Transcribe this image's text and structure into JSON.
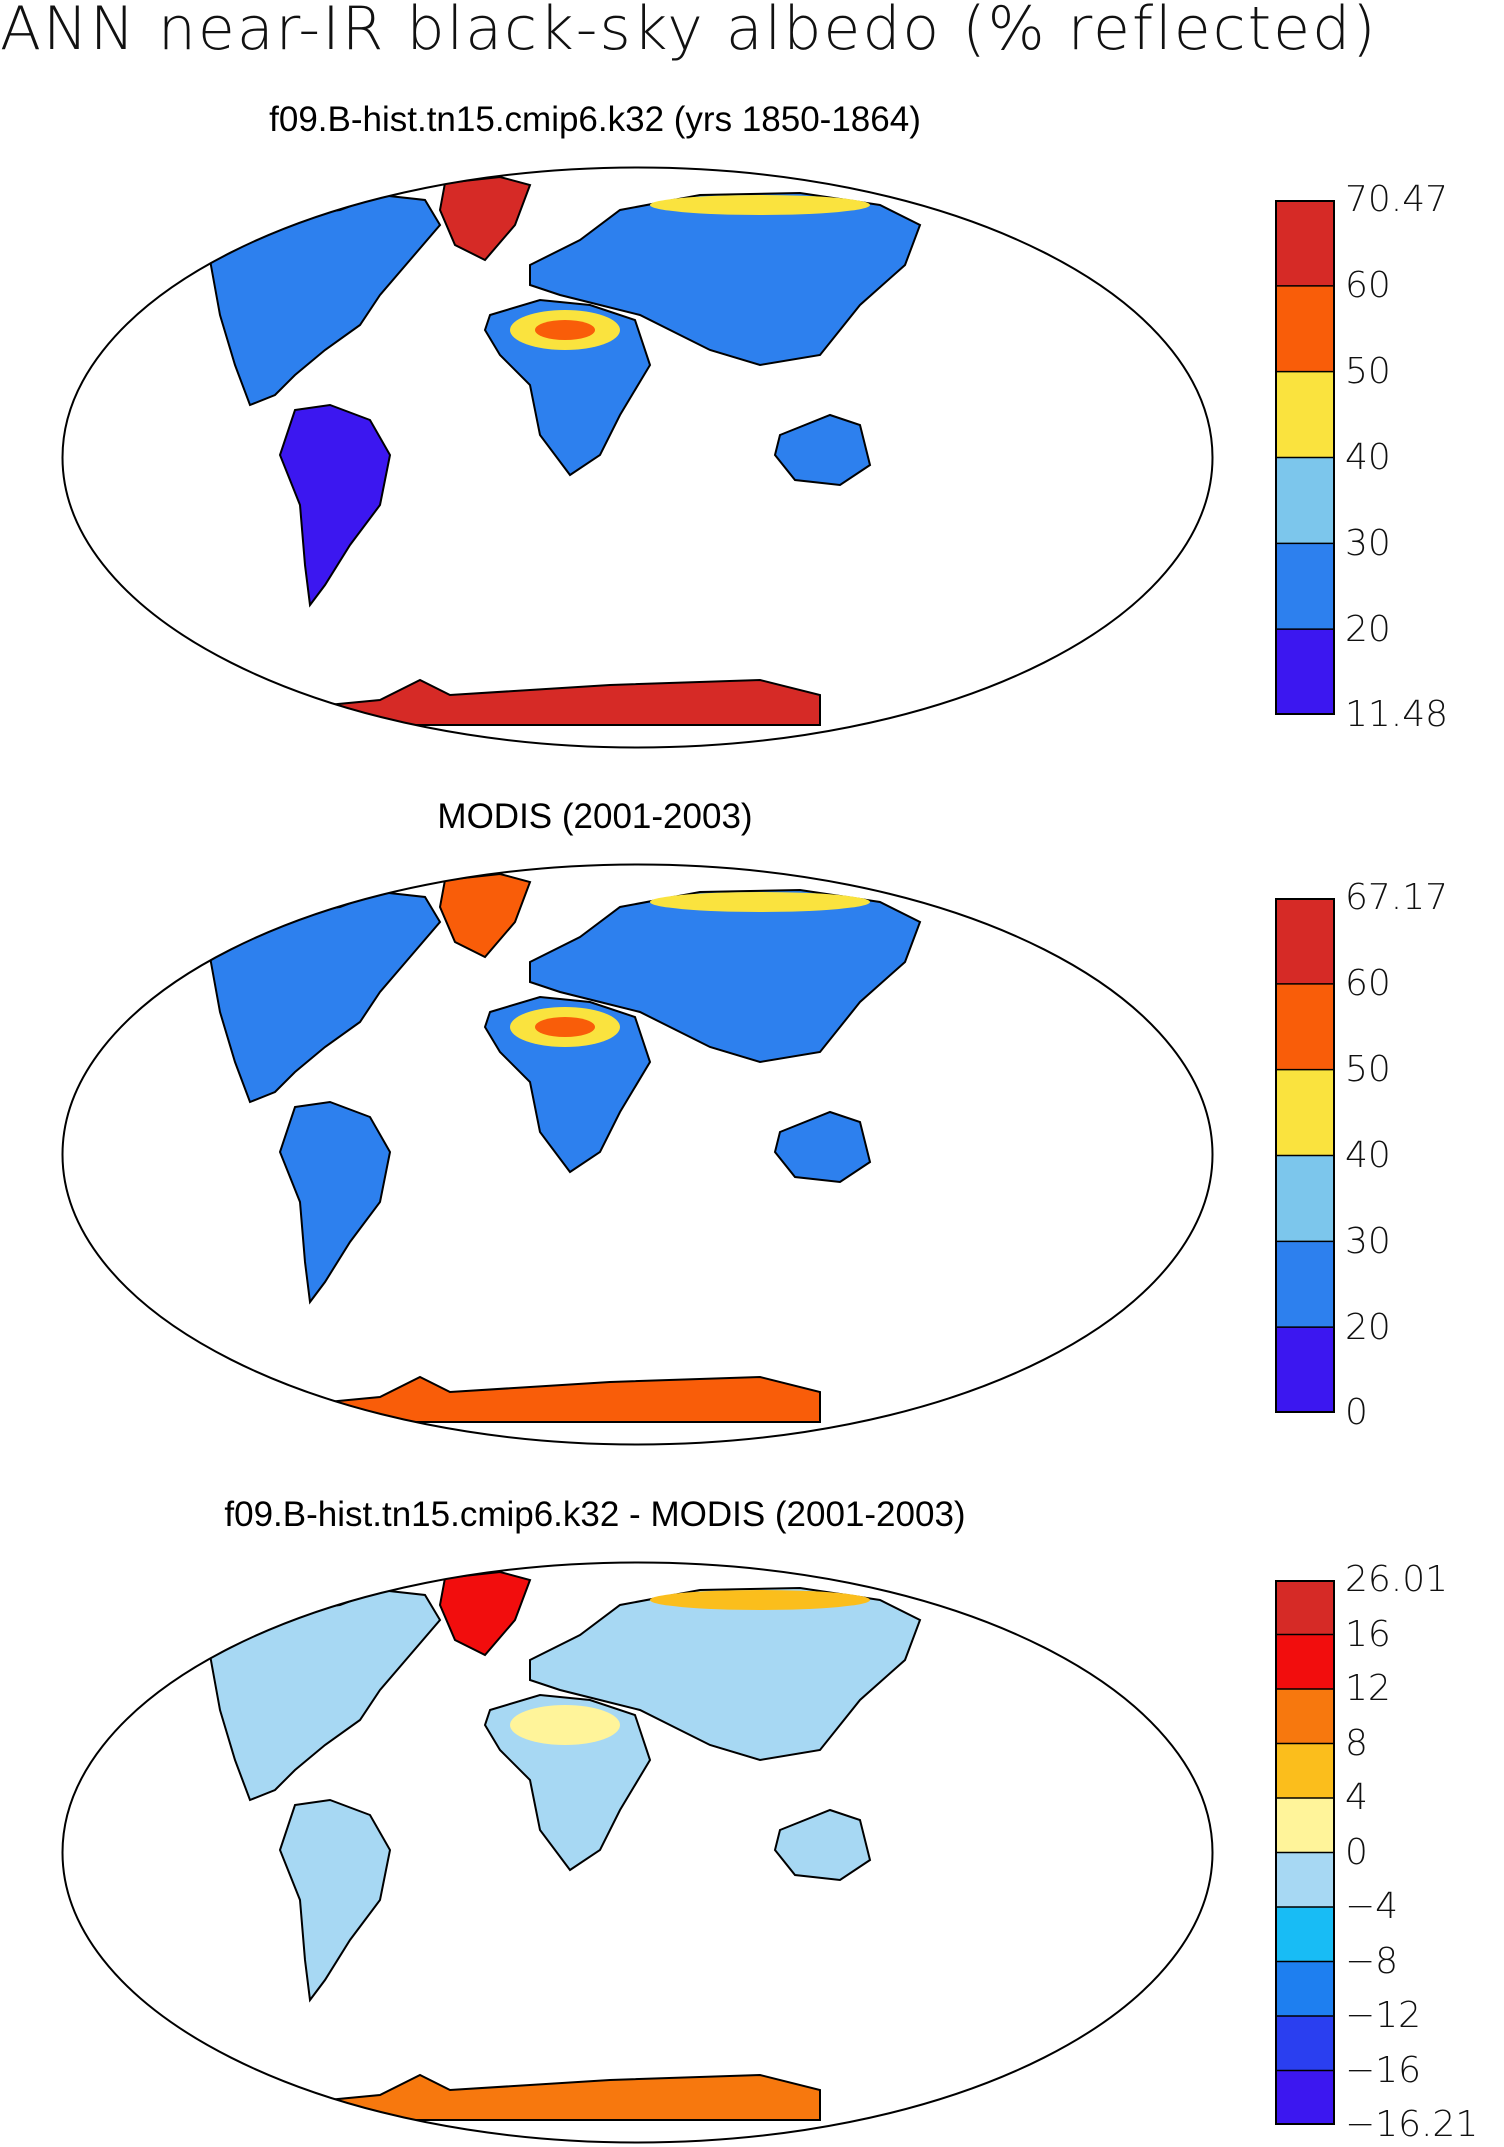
{
  "title": "ANN near-IR black-sky albedo (% reflected)",
  "colors": {
    "land_abs": [
      "#3c17f0",
      "#2d80ee",
      "#7cc6ec",
      "#fae33e",
      "#f95d09",
      "#d62a26"
    ],
    "land_diff": [
      "#3c17f0",
      "#2a3ff0",
      "#1e7ff0",
      "#18bcf5",
      "#a7d8f3",
      "#fff49a",
      "#fbbe1c",
      "#f7780e",
      "#f20d0d",
      "#d62a26"
    ],
    "coast": "#000000",
    "frame": "#000000"
  },
  "panels": [
    {
      "title": "f09.B-hist.tn15.cmip6.k32 (yrs 1850-1864)",
      "colorbar": {
        "min_label": "11.48",
        "max_label": "70.47",
        "levels": [
          "20",
          "30",
          "40",
          "50",
          "60"
        ]
      }
    },
    {
      "title": "MODIS (2001-2003)",
      "colorbar": {
        "min_label": "0",
        "max_label": "67.17",
        "levels": [
          "20",
          "30",
          "40",
          "50",
          "60"
        ]
      }
    },
    {
      "title": "f09.B-hist.tn15.cmip6.k32 - MODIS (2001-2003)",
      "colorbar": {
        "min_label": "−16.21",
        "max_label": "26.01",
        "levels": [
          "−16",
          "−12",
          "−8",
          "−4",
          "0",
          "4",
          "8",
          "12",
          "16"
        ]
      }
    }
  ]
}
